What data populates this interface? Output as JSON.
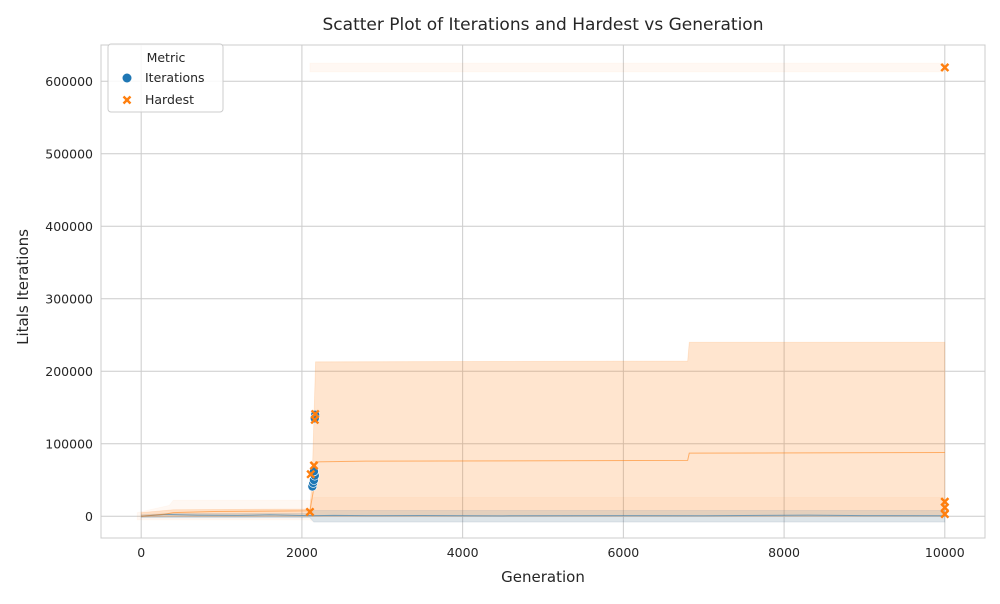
{
  "chart_data": {
    "type": "scatter",
    "title": "Scatter Plot of Iterations and Hardest vs Generation",
    "xlabel": "Generation",
    "ylabel": "Litals Iterations",
    "xlim": [
      -500,
      10500
    ],
    "ylim": [
      -30000,
      650000
    ],
    "xticks": [
      0,
      2000,
      4000,
      6000,
      8000,
      10000
    ],
    "xtick_labels": [
      "0",
      "2000",
      "4000",
      "6000",
      "8000",
      "10000"
    ],
    "yticks": [
      0,
      100000,
      200000,
      300000,
      400000,
      500000,
      600000
    ],
    "ytick_labels": [
      "0",
      "100000",
      "200000",
      "300000",
      "400000",
      "500000",
      "600000"
    ],
    "grid": true,
    "legend": {
      "title": "Metric",
      "placement": "top-left",
      "entries": [
        {
          "label": "Iterations",
          "marker": "circle",
          "color": "#1f77b4"
        },
        {
          "label": "Hardest",
          "marker": "x",
          "color": "#ff7f0e"
        }
      ]
    },
    "series": [
      {
        "name": "Iterations",
        "color": "#1f77b4",
        "marker": "circle",
        "points": [
          [
            2130,
            41000
          ],
          [
            2140,
            46000
          ],
          [
            2150,
            50000
          ],
          [
            2160,
            56000
          ],
          [
            2150,
            62000
          ],
          [
            2165,
            140000
          ],
          [
            2160,
            135000
          ]
        ]
      },
      {
        "name": "Hardest",
        "color": "#ff7f0e",
        "marker": "x",
        "points": [
          [
            2100,
            6000
          ],
          [
            2110,
            58000
          ],
          [
            2150,
            70000
          ],
          [
            2160,
            133000
          ],
          [
            2165,
            141000
          ],
          [
            10000,
            619000
          ],
          [
            10000,
            20000
          ],
          [
            10000,
            3000
          ],
          [
            10000,
            12000
          ]
        ]
      }
    ],
    "trend_lines": [
      {
        "name": "Iterations",
        "color": "#1f77b4",
        "line": [
          [
            0,
            0
          ],
          [
            300,
            2500
          ],
          [
            700,
            1500
          ],
          [
            1200,
            1200
          ],
          [
            1600,
            2000
          ],
          [
            2000,
            1000
          ],
          [
            2150,
            800
          ],
          [
            2400,
            1200
          ],
          [
            2800,
            800
          ],
          [
            3500,
            1000
          ],
          [
            4500,
            600
          ],
          [
            6000,
            900
          ],
          [
            7000,
            700
          ],
          [
            8300,
            1500
          ],
          [
            9000,
            900
          ],
          [
            10000,
            700
          ]
        ],
        "band_low": [
          [
            0,
            -2000
          ],
          [
            2100,
            -2000
          ],
          [
            2150,
            -8000
          ],
          [
            10000,
            -8000
          ]
        ],
        "band_high": [
          [
            0,
            2000
          ],
          [
            400,
            4000
          ],
          [
            2100,
            4000
          ],
          [
            2150,
            8000
          ],
          [
            10000,
            8000
          ]
        ]
      },
      {
        "name": "Hardest",
        "color": "#ff7f0e",
        "line": [
          [
            0,
            0
          ],
          [
            300,
            3000
          ],
          [
            400,
            5000
          ],
          [
            900,
            6500
          ],
          [
            2100,
            7500
          ],
          [
            2150,
            40000
          ],
          [
            2170,
            75000
          ],
          [
            2800,
            76000
          ],
          [
            6800,
            77000
          ],
          [
            6820,
            87000
          ],
          [
            10000,
            88000
          ]
        ],
        "band_low": [
          [
            0,
            -1000
          ],
          [
            300,
            -500
          ],
          [
            2100,
            0
          ],
          [
            2150,
            0
          ],
          [
            10000,
            0
          ]
        ],
        "band_high": [
          [
            0,
            5000
          ],
          [
            400,
            9000
          ],
          [
            2100,
            10000
          ],
          [
            2130,
            60000
          ],
          [
            2170,
            213000
          ],
          [
            6800,
            214000
          ],
          [
            6820,
            240000
          ],
          [
            10000,
            240000
          ]
        ]
      }
    ],
    "extra_bands": [
      {
        "color": "#ff7f0e",
        "low": [
          [
            -50,
            -5000
          ],
          [
            350,
            -5000
          ],
          [
            400,
            -5000
          ],
          [
            2100,
            -5000
          ],
          [
            2150,
            -8000
          ],
          [
            10000,
            -8000
          ]
        ],
        "high": [
          [
            -50,
            5000
          ],
          [
            350,
            15000
          ],
          [
            400,
            22000
          ],
          [
            2100,
            22000
          ],
          [
            2150,
            26000
          ],
          [
            10000,
            26000
          ]
        ]
      },
      {
        "color": "#ff7f0e",
        "low": [
          [
            2100,
            613000
          ],
          [
            10000,
            613000
          ]
        ],
        "high": [
          [
            2100,
            625000
          ],
          [
            10000,
            625000
          ]
        ]
      }
    ]
  }
}
